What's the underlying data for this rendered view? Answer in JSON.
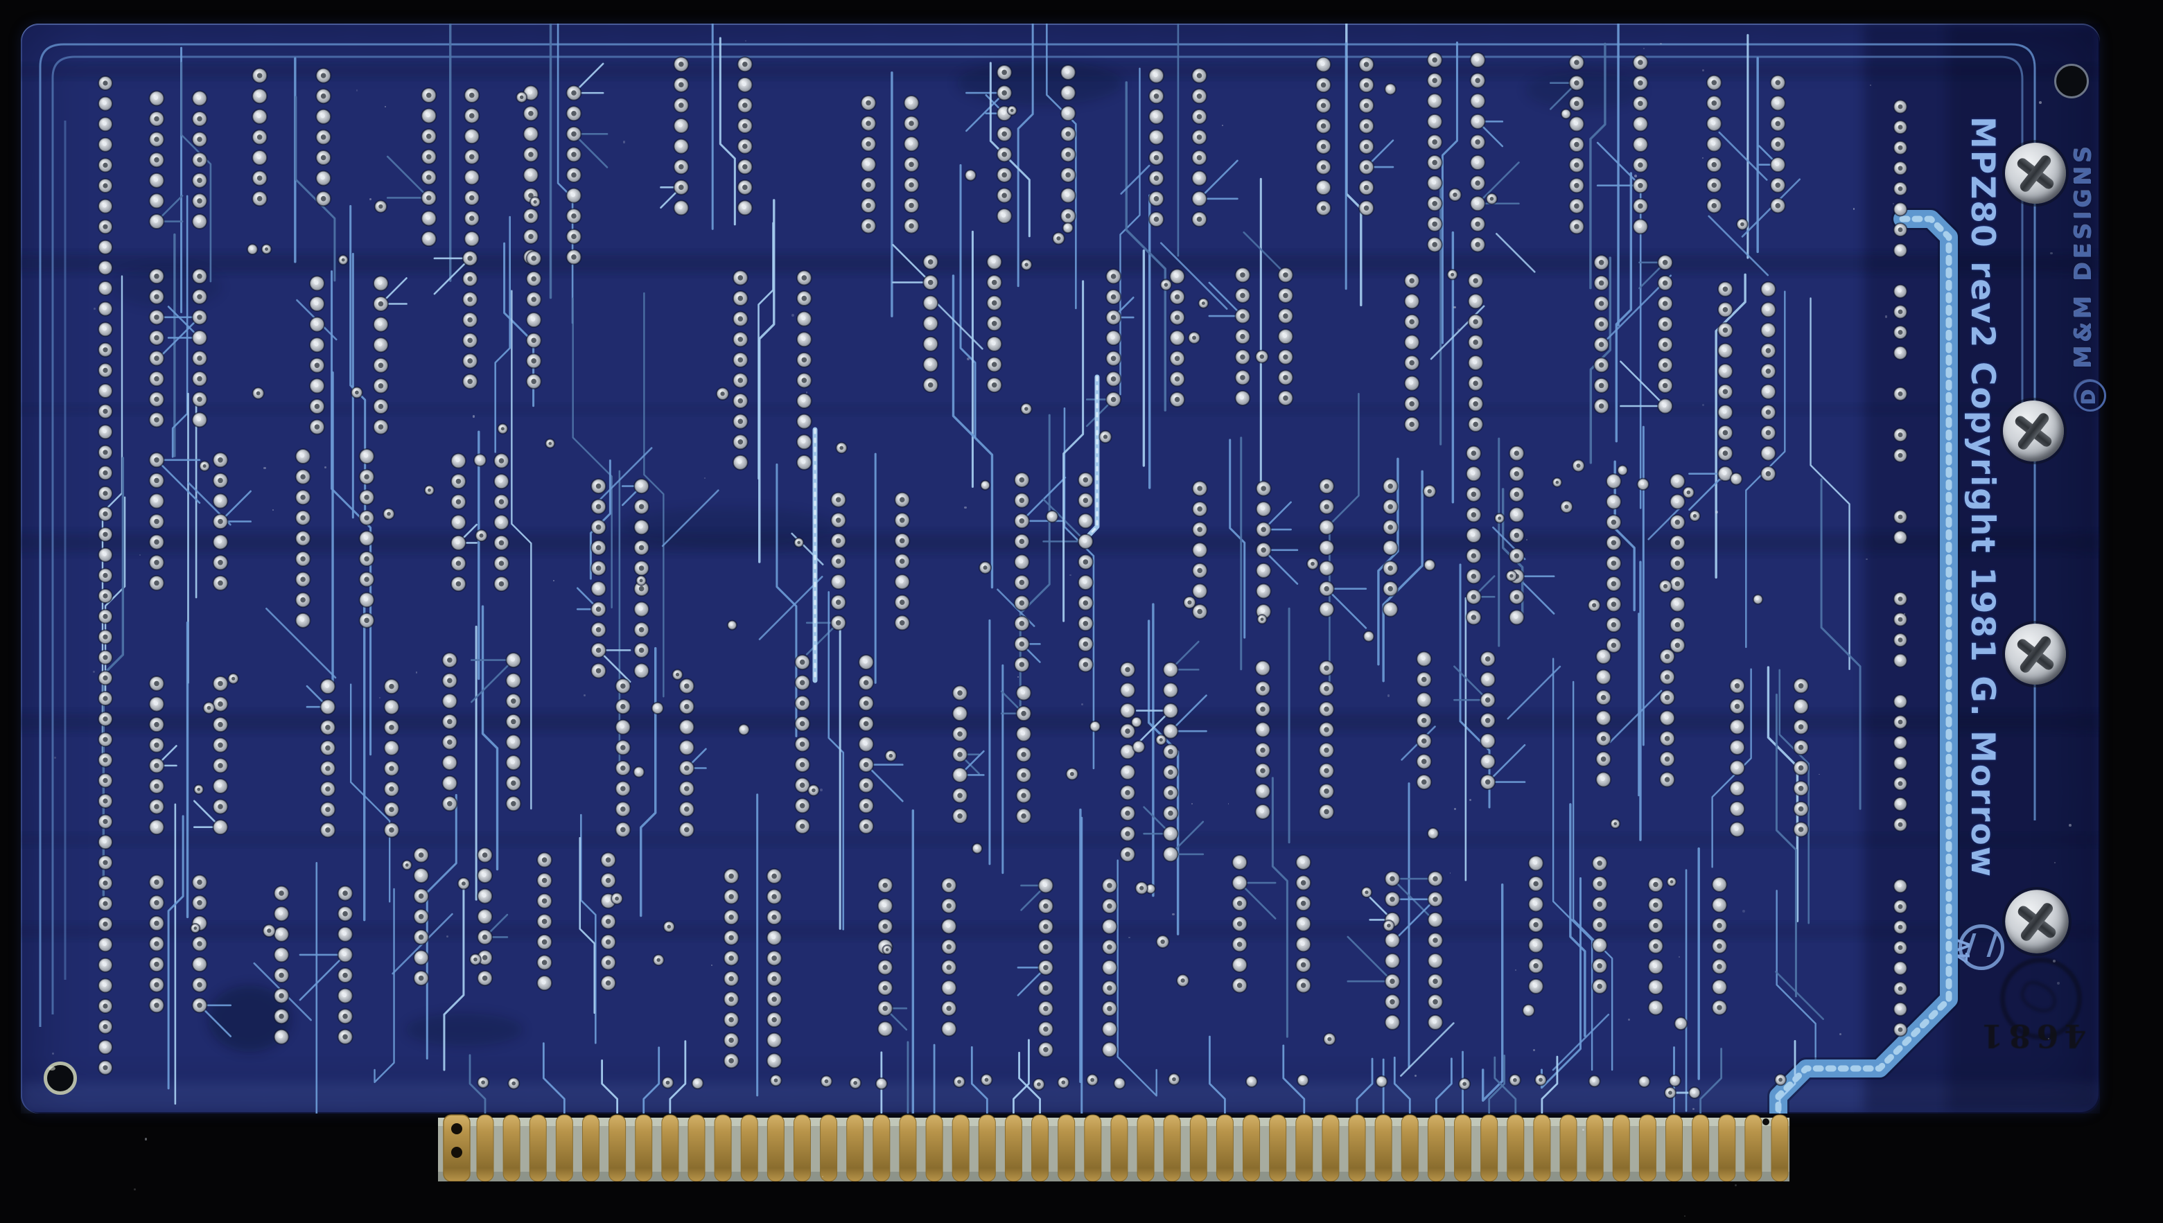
{
  "board": {
    "silkscreen_legend": "MPZ80 rev2 Copyright 1981 G. Morrow",
    "maker_logo_letter": "D",
    "maker_mark": "M&M DESIGNS",
    "cert_mark": "4V",
    "ink_stamp": "4681",
    "connector_finger_count": 50,
    "screw_count": 4,
    "mounting_hole_count": 2
  },
  "colors": {
    "background": "#050506",
    "board_base": "#202b6d",
    "board_dark": "#0d1338",
    "trace": "#6d9bd6",
    "trace_bright": "#a6cdf0",
    "trace_dim": "#4f74a8",
    "bus": "#5e97cf",
    "bus_highlight": "#c2e2f6",
    "border_ring": "#5d86c2",
    "pad_core": "#565c64",
    "pad_shiny": "#e9edf2",
    "silk_text": "#8fb4e8",
    "emboss_text": "#4a66a6",
    "stamp_ink": "#101014",
    "substrate": "#a7aca0",
    "substrate_light": "#c6cbbd",
    "gold": "#b8944a",
    "gold_light": "#d3b168",
    "gold_dark": "#8a6d2e",
    "hole_dark": "#0a0c10"
  }
}
